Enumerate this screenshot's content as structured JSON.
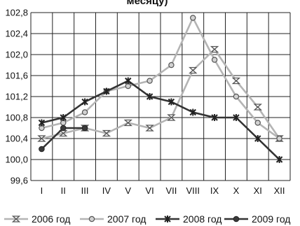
{
  "chart_data": {
    "type": "line",
    "title": "месяцу)",
    "xlabel": "",
    "ylabel": "",
    "categories": [
      "I",
      "II",
      "III",
      "IV",
      "V",
      "VI",
      "VII",
      "VIII",
      "IX",
      "X",
      "XI",
      "XII"
    ],
    "y_ticks": [
      "99,6",
      "100,0",
      "100,4",
      "100,8",
      "101,2",
      "101,6",
      "102,0",
      "102,4",
      "102,8"
    ],
    "ylim": [
      99.6,
      102.8
    ],
    "grid": true,
    "legend_position": "bottom",
    "series": [
      {
        "name": "2006 год",
        "marker": "hourglass",
        "color": "#b4b4b4",
        "values": [
          100.4,
          100.5,
          100.6,
          100.5,
          100.7,
          100.6,
          100.8,
          101.7,
          102.1,
          101.5,
          101.0,
          100.4
        ]
      },
      {
        "name": "2007 год",
        "marker": "circle",
        "color": "#b4b4b4",
        "values": [
          100.6,
          100.7,
          100.9,
          101.3,
          101.4,
          101.5,
          101.8,
          102.7,
          101.9,
          101.2,
          100.7,
          100.4
        ]
      },
      {
        "name": "2008 год",
        "marker": "star",
        "color": "#333333",
        "values": [
          100.7,
          100.8,
          101.1,
          101.3,
          101.5,
          101.2,
          101.1,
          100.9,
          100.8,
          100.8,
          100.4,
          100.0
        ]
      },
      {
        "name": "2009 год",
        "marker": "circle-filled",
        "color": "#333333",
        "values": [
          100.2,
          100.6,
          100.6,
          null,
          null,
          null,
          null,
          null,
          null,
          null,
          null,
          null
        ]
      }
    ]
  }
}
